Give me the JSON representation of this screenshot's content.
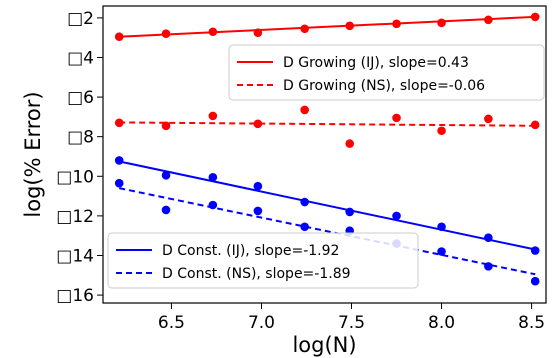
{
  "chart_data": {
    "type": "scatter",
    "title": "",
    "xlabel": "log(N)",
    "ylabel": "log(% Error)",
    "xlim": [
      6.12,
      8.58
    ],
    "ylim": [
      -16.4,
      -1.4
    ],
    "x_ticks": [
      6.5,
      7.0,
      7.5,
      8.0,
      8.5
    ],
    "x_tick_labels": [
      "6.5",
      "7.0",
      "7.5",
      "8.0",
      "8.5"
    ],
    "y_ticks": [
      -2,
      -4,
      -6,
      -8,
      -10,
      -12,
      -14,
      -16
    ],
    "y_tick_labels": [
      "□2",
      "□4",
      "□6",
      "□8",
      "□10",
      "□12",
      "□14",
      "□16"
    ],
    "grid": false,
    "series": [
      {
        "name": "D Growing (IJ),  slope=0.43",
        "color": "#ff0000",
        "line_style": "solid",
        "x": [
          6.21,
          6.47,
          6.73,
          6.98,
          7.24,
          7.49,
          7.75,
          8.0,
          8.26,
          8.52
        ],
        "y": [
          -2.95,
          -2.8,
          -2.7,
          -2.75,
          -2.55,
          -2.4,
          -2.3,
          -2.25,
          -2.1,
          -1.95
        ],
        "fit": [
          [
            6.21,
            -2.95
          ],
          [
            8.52,
            -1.95
          ]
        ]
      },
      {
        "name": "D Growing (NS),  slope=-0.06",
        "color": "#ff0000",
        "line_style": "dashed",
        "x": [
          6.21,
          6.47,
          6.73,
          6.98,
          7.24,
          7.49,
          7.75,
          8.0,
          8.26,
          8.52
        ],
        "y": [
          -7.3,
          -7.45,
          -6.95,
          -7.35,
          -6.65,
          -8.35,
          -7.05,
          -7.7,
          -7.1,
          -7.4
        ],
        "fit": [
          [
            6.21,
            -7.28
          ],
          [
            8.52,
            -7.45
          ]
        ]
      },
      {
        "name": "D Const. (IJ),  slope=-1.92",
        "color": "#0000ff",
        "line_style": "solid",
        "x": [
          6.21,
          6.47,
          6.73,
          6.98,
          7.24,
          7.49,
          7.75,
          8.0,
          8.26,
          8.52
        ],
        "y": [
          -9.2,
          -9.95,
          -10.05,
          -10.5,
          -11.3,
          -11.8,
          -12.0,
          -12.55,
          -13.1,
          -13.75
        ],
        "fit": [
          [
            6.21,
            -9.25
          ],
          [
            8.52,
            -13.7
          ]
        ]
      },
      {
        "name": "D Const. (NS),  slope=-1.89",
        "color": "#0000ff",
        "line_style": "dashed",
        "x": [
          6.21,
          6.47,
          6.73,
          6.98,
          7.24,
          7.49,
          7.75,
          8.0,
          8.26,
          8.52
        ],
        "y": [
          -10.35,
          -11.7,
          -11.45,
          -11.75,
          -12.55,
          -12.75,
          -13.4,
          -13.8,
          -14.55,
          -15.3
        ],
        "fit": [
          [
            6.21,
            -10.6
          ],
          [
            8.52,
            -14.95
          ]
        ]
      }
    ],
    "legends": [
      {
        "placement": "upper-right",
        "series": [
          0,
          1
        ]
      },
      {
        "placement": "lower-left",
        "series": [
          2,
          3
        ]
      }
    ]
  }
}
